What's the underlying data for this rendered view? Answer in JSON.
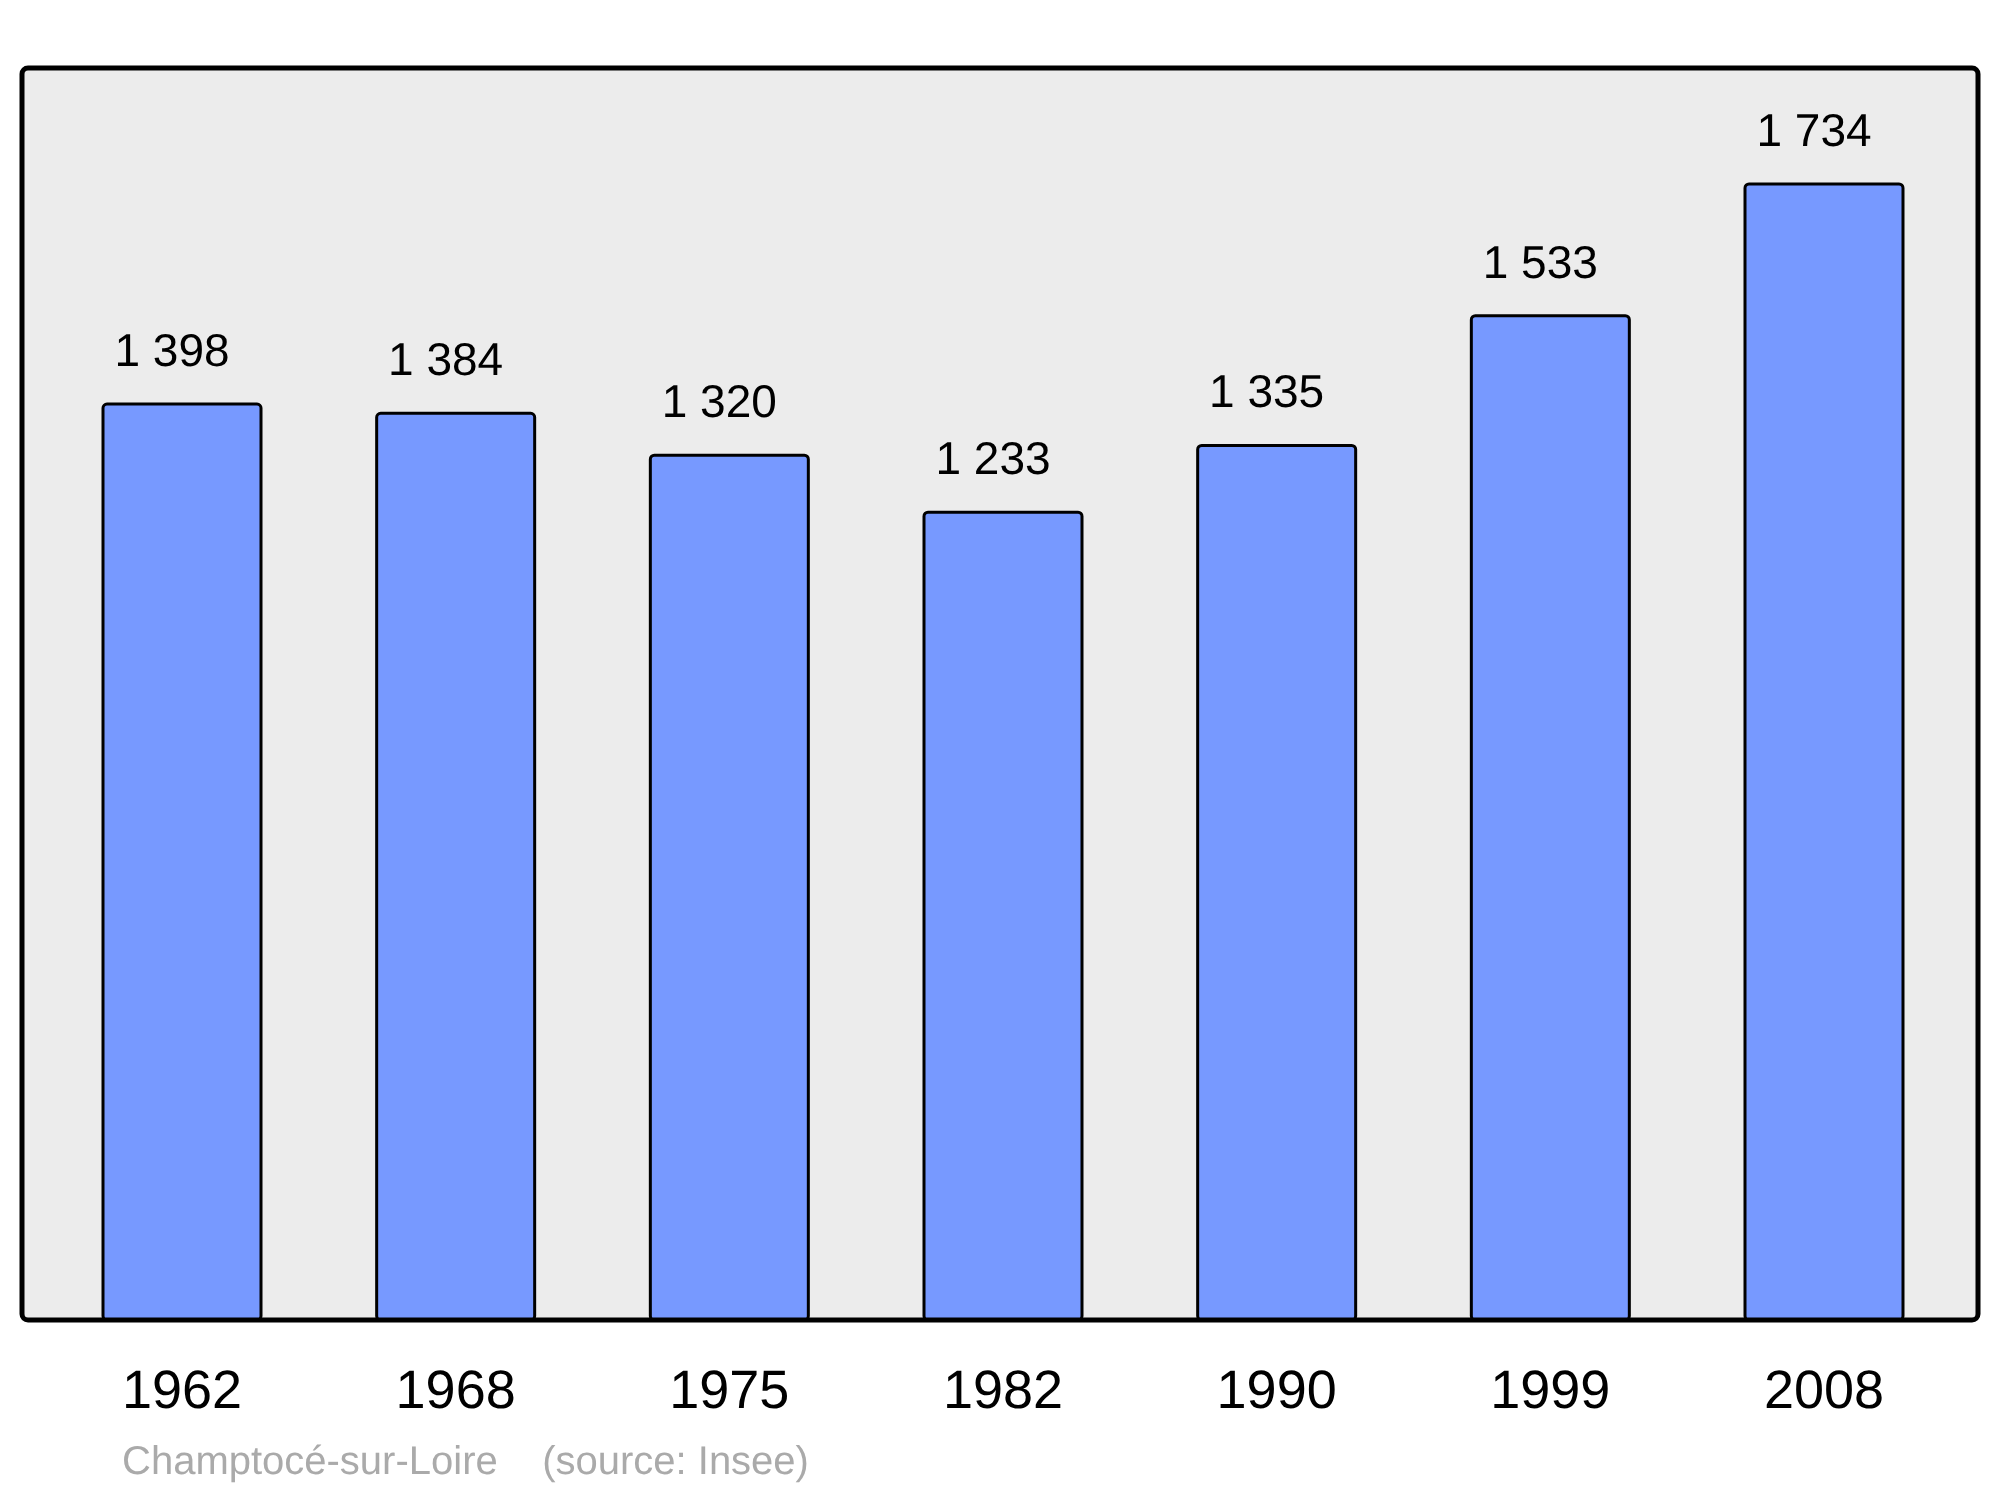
{
  "chart_data": {
    "type": "bar",
    "categories": [
      "1962",
      "1968",
      "1975",
      "1982",
      "1990",
      "1999",
      "2008"
    ],
    "values": [
      1398,
      1384,
      1320,
      1233,
      1335,
      1533,
      1734
    ],
    "value_labels": [
      "1 398",
      "1 384",
      "1 320",
      "1 233",
      "1 335",
      "1 533",
      "1 734"
    ],
    "color": "#7799ff",
    "annotations": [
      "Champtocé-sur-Loire    (source: Insee)"
    ]
  }
}
